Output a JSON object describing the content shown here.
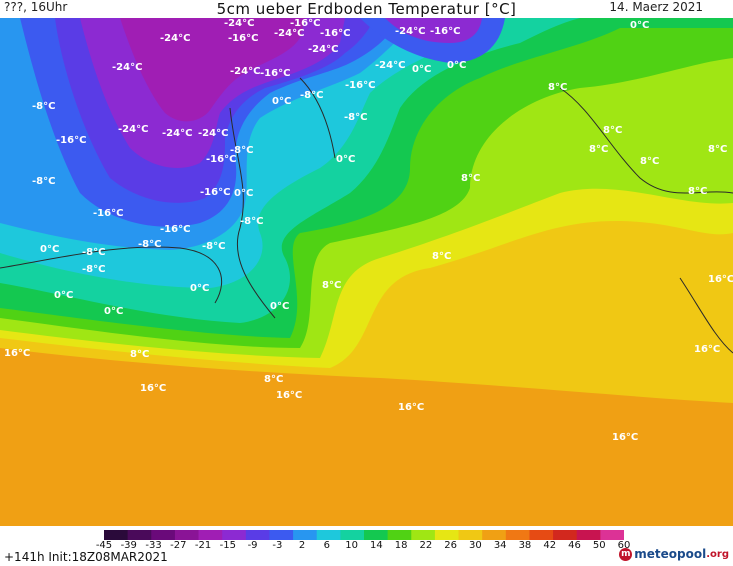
{
  "header": {
    "left": "???, 16Uhr",
    "title": "5cm ueber Erdboden Temperatur [°C]",
    "date": "14. Maerz 2021"
  },
  "map_labels": [
    {
      "text": "-24°C"
    },
    {
      "text": "-16°C"
    },
    {
      "text": "-24°C"
    },
    {
      "text": "-16°C"
    },
    {
      "text": "-24°C"
    },
    {
      "text": "-16°C"
    },
    {
      "text": "-24°C"
    },
    {
      "text": "-24°C"
    },
    {
      "text": "-16°C"
    },
    {
      "text": "-24°C"
    },
    {
      "text": "-24°C"
    },
    {
      "text": "-16°C"
    },
    {
      "text": "0°C"
    },
    {
      "text": "0°C"
    },
    {
      "text": "0°C"
    },
    {
      "text": "-16°C"
    },
    {
      "text": "-24°C"
    },
    {
      "text": "-8°C"
    },
    {
      "text": "0°C"
    },
    {
      "text": "-8°C"
    },
    {
      "text": "8°C"
    },
    {
      "text": "-8°C"
    },
    {
      "text": "-16°C"
    },
    {
      "text": "-24°C"
    },
    {
      "text": "-24°C"
    },
    {
      "text": "-24°C"
    },
    {
      "text": "-8°C"
    },
    {
      "text": "0°C"
    },
    {
      "text": "-16°C"
    },
    {
      "text": "8°C"
    },
    {
      "text": "8°C"
    },
    {
      "text": "8°C"
    },
    {
      "text": "-8°C"
    },
    {
      "text": "-16°C"
    },
    {
      "text": "0°C"
    },
    {
      "text": "8°C"
    },
    {
      "text": "8°C"
    },
    {
      "text": "-16°C"
    },
    {
      "text": "-8°C"
    },
    {
      "text": "-16°C"
    },
    {
      "text": "-8°C"
    },
    {
      "text": "0°C"
    },
    {
      "text": "-8°C"
    },
    {
      "text": "-8°C"
    },
    {
      "text": "-8°C"
    },
    {
      "text": "8°C"
    },
    {
      "text": "8°C"
    },
    {
      "text": "0°C"
    },
    {
      "text": "0°C"
    },
    {
      "text": "8°C"
    },
    {
      "text": "0°C"
    },
    {
      "text": "0°C"
    },
    {
      "text": "16°C"
    },
    {
      "text": "16°C"
    },
    {
      "text": "8°C"
    },
    {
      "text": "16°C"
    },
    {
      "text": "8°C"
    },
    {
      "text": "16°C"
    },
    {
      "text": "16°C"
    },
    {
      "text": "16°C"
    },
    {
      "text": "16°C"
    }
  ],
  "colorbar": {
    "ticks": [
      "-45",
      "-39",
      "-33",
      "-27",
      "-21",
      "-15",
      "-9",
      "-3",
      "2",
      "6",
      "10",
      "14",
      "18",
      "22",
      "26",
      "30",
      "34",
      "38",
      "42",
      "46",
      "50",
      "60"
    ],
    "colors": [
      "#2a0a3a",
      "#4a0a5a",
      "#6a0a7a",
      "#8a1496",
      "#a01eb4",
      "#8c2ad2",
      "#5a3ce6",
      "#3c5af0",
      "#2896f0",
      "#1ec8dc",
      "#14d2a0",
      "#14c850",
      "#50d214",
      "#a0e614",
      "#e6e614",
      "#f0c814",
      "#f0a014",
      "#f07814",
      "#e64b14",
      "#d2281e",
      "#c81450",
      "#dc3296"
    ]
  },
  "footer": {
    "left": "+141h  Init:18Z08MAR2021",
    "logo_a": "meteopool",
    "logo_b": ".org"
  }
}
